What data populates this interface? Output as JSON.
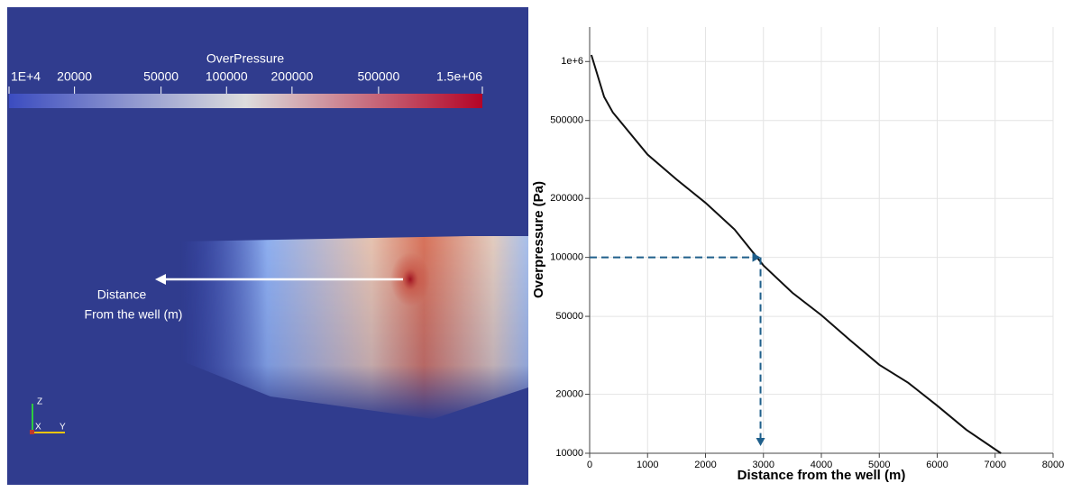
{
  "chart_data": [
    {
      "type": "colorbar",
      "title": "OverPressure",
      "log_scale": true,
      "range": [
        10000,
        1500000
      ],
      "ticks": [
        {
          "value": 10000,
          "label": "1E+4"
        },
        20000,
        50000,
        100000,
        200000,
        500000,
        {
          "value": 1500000,
          "label": "1.5e+06"
        }
      ],
      "colors": [
        "#3b4cc0",
        "#dddddd",
        "#b40426"
      ],
      "annotations": [
        "Distance",
        "From the well (m)"
      ],
      "axis_labels": [
        "Z",
        "X",
        "Y"
      ]
    },
    {
      "type": "line",
      "x_label": "Distance from the well (m)",
      "y_label": "Overpressure (Pa)",
      "log_scale": true,
      "grid": true,
      "color": "#111111",
      "x": [
        30,
        250,
        400,
        1000,
        1500,
        2000,
        2500,
        3000,
        3500,
        4000,
        4500,
        5000,
        5500,
        6000,
        6500,
        7100
      ],
      "values": [
        1080000,
        660000,
        550000,
        335000,
        250000,
        190000,
        139000,
        91000,
        66000,
        50700,
        37700,
        28300,
        22900,
        17500,
        13200,
        10000
      ],
      "xlim": [
        0,
        8000
      ],
      "xticks": [
        0,
        1000,
        2000,
        3000,
        4000,
        5000,
        6000,
        7000,
        8000
      ],
      "ylim": [
        10000,
        1500000
      ],
      "yticks": [
        10000,
        20000,
        50000,
        100000,
        200000,
        500000,
        {
          "value": 1000000,
          "label": "1e+6"
        }
      ],
      "marker": {
        "x": 2950,
        "y": 100000,
        "color": "#1f5f8b"
      }
    }
  ]
}
